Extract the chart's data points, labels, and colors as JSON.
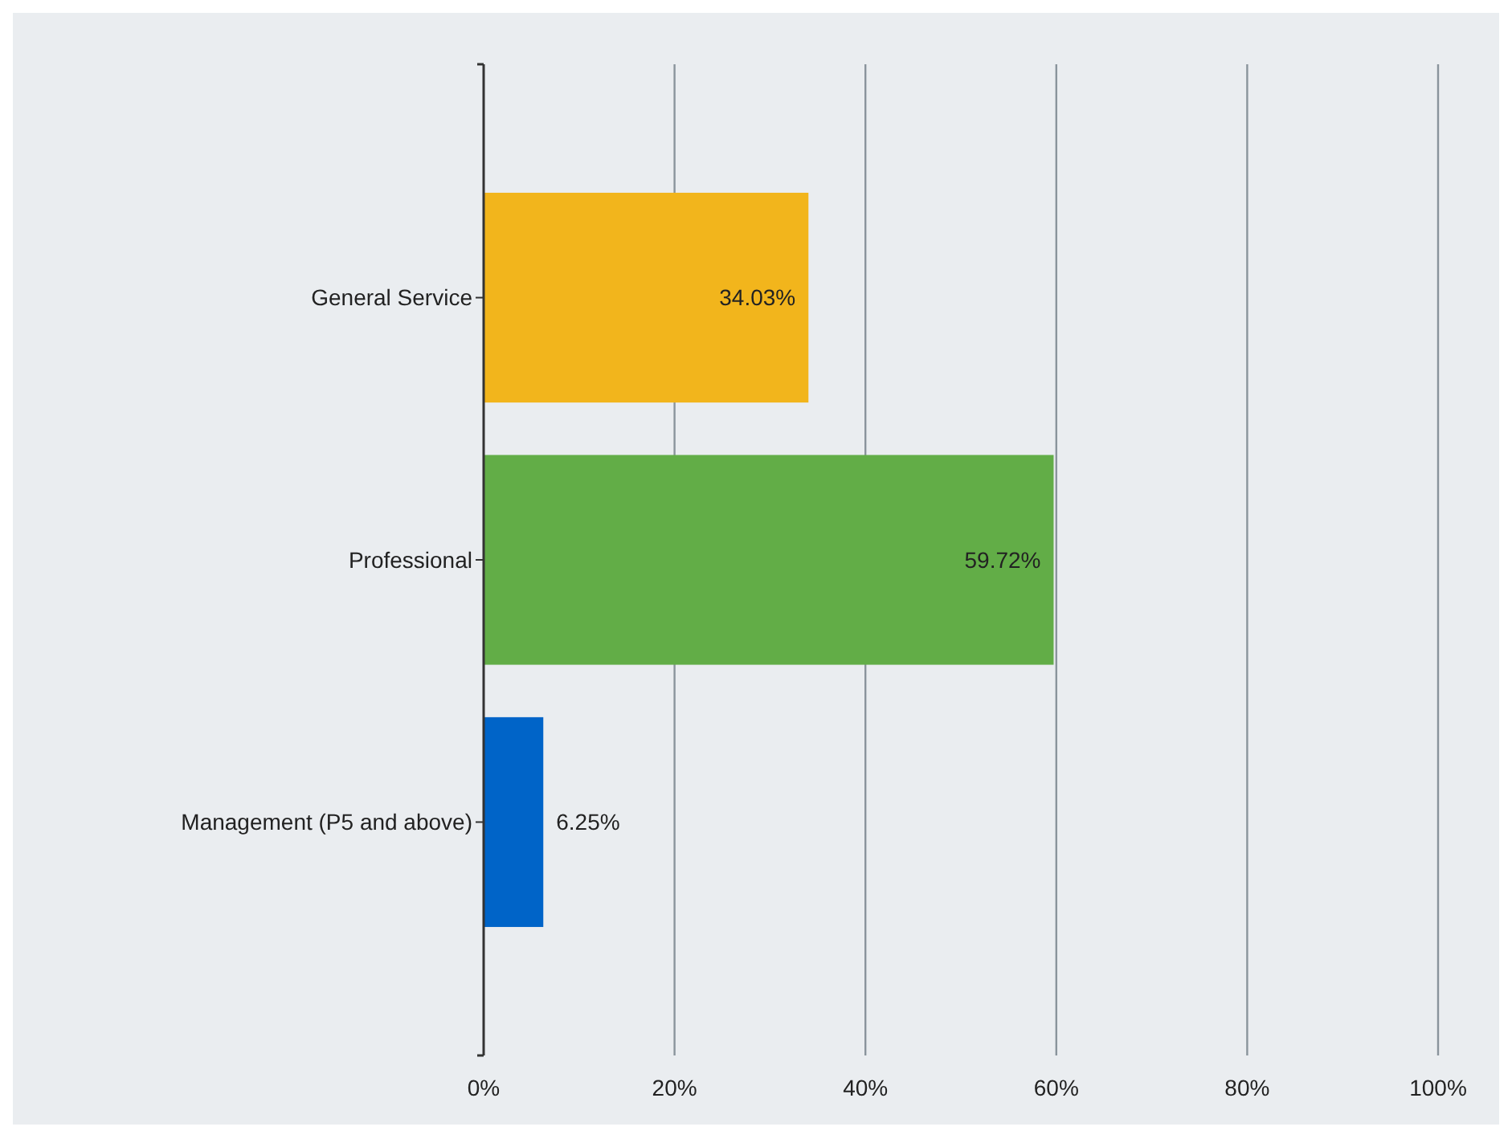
{
  "chart_data": {
    "type": "bar",
    "orientation": "horizontal",
    "categories": [
      "General Service",
      "Professional",
      "Management (P5 and above)"
    ],
    "values": [
      34.03,
      59.72,
      6.25
    ],
    "colors": [
      "#f2b51c",
      "#62ad47",
      "#0064c8"
    ],
    "value_labels": [
      "34.03%",
      "59.72%",
      "6.25%"
    ],
    "xlim": [
      0,
      100
    ],
    "xticks": [
      {
        "value": 0,
        "label": "0%"
      },
      {
        "value": 20,
        "label": "20%"
      },
      {
        "value": 40,
        "label": "40%"
      },
      {
        "value": 60,
        "label": "60%"
      },
      {
        "value": 80,
        "label": "80%"
      },
      {
        "value": 100,
        "label": "100%"
      }
    ],
    "grid": "x"
  }
}
